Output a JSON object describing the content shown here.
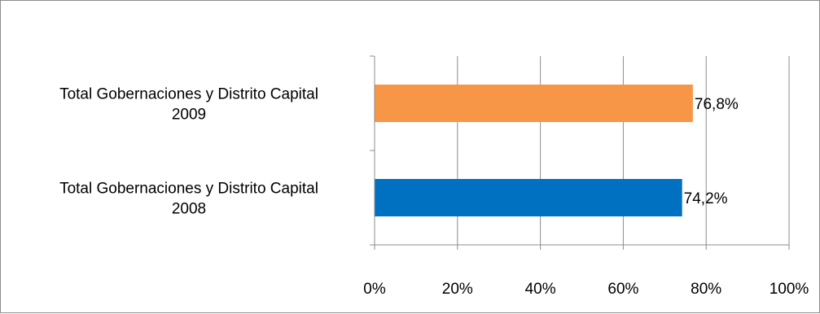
{
  "chart_data": {
    "type": "bar",
    "orientation": "horizontal",
    "title": "",
    "xlabel": "",
    "ylabel": "",
    "categories": [
      [
        "Total Gobernaciones y Distrito Capital",
        "2009"
      ],
      [
        "Total Gobernaciones y Distrito Capital",
        "2008"
      ]
    ],
    "values": [
      76.8,
      74.2
    ],
    "value_labels": [
      "76,8%",
      "74,2%"
    ],
    "colors": [
      "#f79646",
      "#0070c0"
    ],
    "xlim": [
      0,
      100
    ],
    "x_ticks": [
      0,
      20,
      40,
      60,
      80,
      100
    ],
    "x_tick_labels": [
      "0%",
      "20%",
      "40%",
      "60%",
      "80%",
      "100%"
    ],
    "grid": true,
    "legend": "none"
  }
}
